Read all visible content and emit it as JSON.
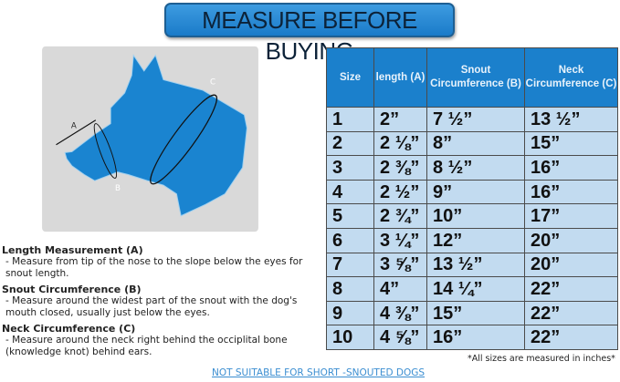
{
  "title": "MEASURE BEFORE BUYING",
  "diagram": {
    "labels": {
      "a": "A",
      "b": "B",
      "c": "C"
    },
    "colors": {
      "dog": "#1a84d0",
      "background": "#d9d9d9"
    }
  },
  "descriptions": [
    {
      "heading": "Length Measurement (A)",
      "text": "- Measure from tip of the nose to the slope below the eyes for snout length."
    },
    {
      "heading": "Snout Circumference (B)",
      "text": "- Measure around the widest part of the snout with the dog's mouth closed, usually just below the eyes."
    },
    {
      "heading": "Neck Circumference (C)",
      "text": "- Measure around the neck right behind the occiplital bone (knowledge knot) behind ears."
    }
  ],
  "table": {
    "headers": [
      "Size",
      "length (A)",
      "Snout Circumference (B)",
      "Neck Circumference (C)"
    ],
    "rows": [
      [
        "1",
        "2”",
        "7 ½”",
        "13 ½”"
      ],
      [
        "2",
        "2 ⅛”",
        "8”",
        "15”"
      ],
      [
        "3",
        "2 ⅜”",
        "8 ½”",
        "16”"
      ],
      [
        "4",
        "2 ½”",
        "9”",
        "16”"
      ],
      [
        "5",
        "2 ¾”",
        "10”",
        "17”"
      ],
      [
        "6",
        "3 ¼”",
        "12”",
        "20”"
      ],
      [
        "7",
        "3 ⅝”",
        "13 ½”",
        "20”"
      ],
      [
        "8",
        "4”",
        "14 ¼”",
        "22”"
      ],
      [
        "9",
        "4 ⅜”",
        "15”",
        "22”"
      ],
      [
        "10",
        "4 ⅝”",
        "16”",
        "22”"
      ]
    ]
  },
  "note": "*All sizes are measured in inches*",
  "warning": "NOT SUITABLE FOR SHORT -SNOUTED DOGS"
}
